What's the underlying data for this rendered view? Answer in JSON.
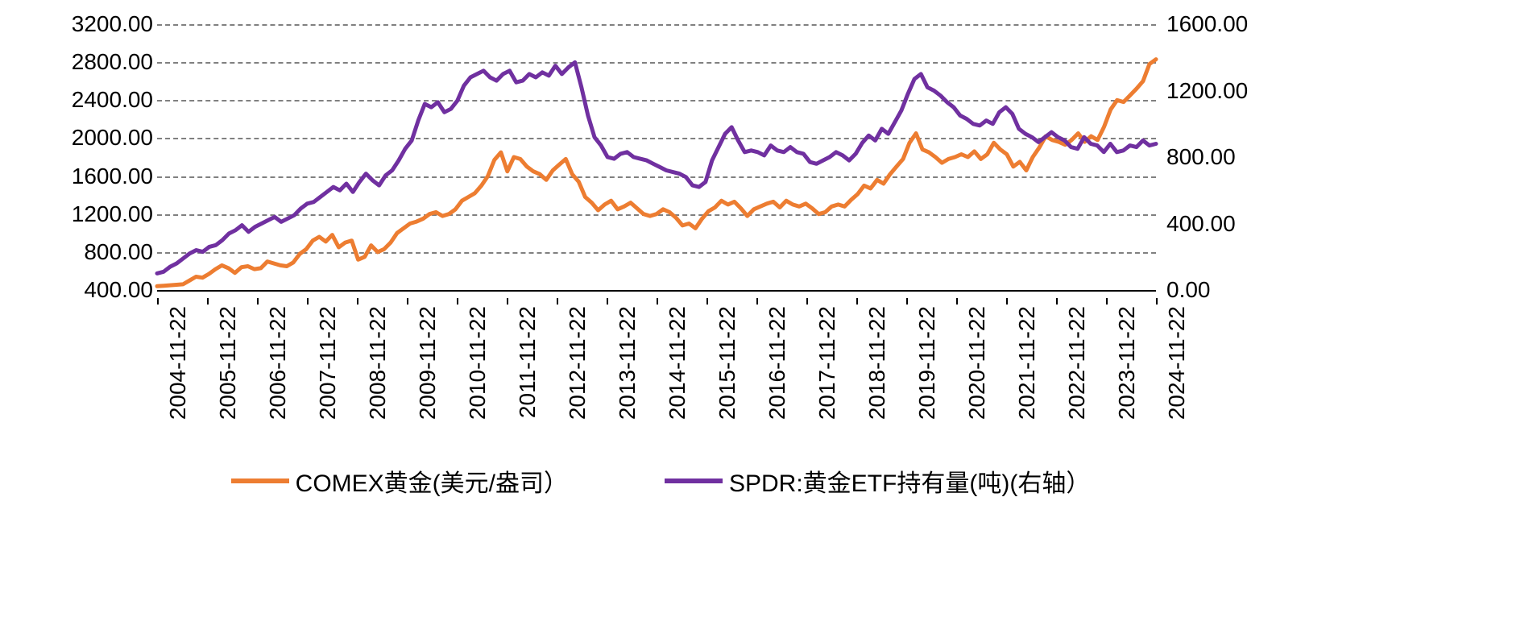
{
  "chart": {
    "type": "line-dual-axis",
    "background_color": "#ffffff",
    "grid_color": "#808080",
    "grid_dash": "6,6",
    "axis_color": "#000000",
    "tick_font_size": 28,
    "legend_font_size": 30,
    "line_width": 5,
    "left_axis": {
      "min": 400,
      "max": 3200,
      "ticks": [
        400,
        800,
        1200,
        1600,
        2000,
        2400,
        2800,
        3200
      ],
      "tick_labels": [
        "400.00",
        "800.00",
        "1200.00",
        "1600.00",
        "2000.00",
        "2400.00",
        "2800.00",
        "3200.00"
      ]
    },
    "right_axis": {
      "min": 0,
      "max": 1600,
      "ticks": [
        0,
        400,
        800,
        1200,
        1600
      ],
      "tick_labels": [
        "0.00",
        "400.00",
        "800.00",
        "1200.00",
        "1600.00"
      ]
    },
    "x_axis": {
      "labels": [
        "2004-11-22",
        "2005-11-22",
        "2006-11-22",
        "2007-11-22",
        "2008-11-22",
        "2009-11-22",
        "2010-11-22",
        "2011-11-22",
        "2012-11-22",
        "2013-11-22",
        "2014-11-22",
        "2015-11-22",
        "2016-11-22",
        "2017-11-22",
        "2018-11-22",
        "2019-11-22",
        "2020-11-22",
        "2021-11-22",
        "2022-11-22",
        "2023-11-22",
        "2024-11-22"
      ]
    },
    "series": [
      {
        "id": "comex",
        "label": "COMEX黄金(美元/盎司）",
        "axis": "left",
        "color": "#ed7d31",
        "values": [
          440,
          445,
          450,
          455,
          460,
          500,
          540,
          530,
          570,
          620,
          660,
          630,
          580,
          640,
          650,
          620,
          630,
          700,
          680,
          660,
          650,
          690,
          780,
          830,
          920,
          960,
          910,
          980,
          850,
          900,
          920,
          720,
          750,
          870,
          800,
          830,
          900,
          1000,
          1050,
          1100,
          1120,
          1150,
          1200,
          1220,
          1180,
          1200,
          1250,
          1340,
          1380,
          1420,
          1500,
          1600,
          1770,
          1850,
          1650,
          1800,
          1780,
          1700,
          1650,
          1620,
          1560,
          1660,
          1720,
          1780,
          1620,
          1540,
          1380,
          1320,
          1240,
          1300,
          1340,
          1250,
          1280,
          1320,
          1260,
          1200,
          1180,
          1200,
          1250,
          1220,
          1160,
          1080,
          1100,
          1050,
          1150,
          1230,
          1270,
          1340,
          1300,
          1330,
          1260,
          1180,
          1250,
          1280,
          1310,
          1330,
          1270,
          1340,
          1300,
          1280,
          1310,
          1260,
          1200,
          1220,
          1280,
          1300,
          1280,
          1350,
          1410,
          1500,
          1470,
          1560,
          1520,
          1620,
          1700,
          1780,
          1950,
          2050,
          1880,
          1850,
          1800,
          1740,
          1780,
          1800,
          1830,
          1800,
          1860,
          1780,
          1830,
          1950,
          1880,
          1830,
          1700,
          1750,
          1660,
          1800,
          1900,
          2020,
          1980,
          1960,
          1930,
          1980,
          2050,
          1960,
          2020,
          1980,
          2120,
          2300,
          2400,
          2380,
          2450,
          2520,
          2600,
          2780,
          2830
        ]
      },
      {
        "id": "spdr",
        "label": "SPDR:黄金ETF持有量(吨)(右轴）",
        "axis": "right",
        "color": "#7030a0",
        "values": [
          100,
          110,
          140,
          160,
          190,
          220,
          240,
          230,
          260,
          270,
          300,
          340,
          360,
          390,
          350,
          380,
          400,
          420,
          440,
          410,
          430,
          450,
          490,
          520,
          530,
          560,
          590,
          620,
          600,
          640,
          590,
          650,
          700,
          660,
          630,
          690,
          720,
          780,
          850,
          900,
          1020,
          1120,
          1100,
          1130,
          1070,
          1090,
          1140,
          1230,
          1280,
          1300,
          1320,
          1280,
          1260,
          1300,
          1320,
          1250,
          1260,
          1300,
          1280,
          1310,
          1290,
          1350,
          1300,
          1340,
          1370,
          1220,
          1050,
          920,
          870,
          800,
          790,
          820,
          830,
          800,
          790,
          780,
          760,
          740,
          720,
          710,
          700,
          680,
          630,
          620,
          650,
          780,
          860,
          940,
          980,
          900,
          830,
          840,
          830,
          810,
          870,
          840,
          830,
          860,
          830,
          820,
          770,
          760,
          780,
          800,
          830,
          810,
          780,
          820,
          885,
          930,
          900,
          970,
          940,
          1010,
          1080,
          1180,
          1270,
          1300,
          1220,
          1200,
          1170,
          1130,
          1100,
          1050,
          1030,
          1000,
          990,
          1020,
          1000,
          1070,
          1100,
          1060,
          970,
          940,
          920,
          890,
          920,
          950,
          920,
          900,
          860,
          850,
          920,
          880,
          870,
          830,
          880,
          830,
          840,
          870,
          860,
          900,
          870,
          880
        ]
      }
    ],
    "legend": [
      {
        "label": "COMEX黄金(美元/盎司）",
        "color": "#ed7d31"
      },
      {
        "label": "SPDR:黄金ETF持有量(吨)(右轴）",
        "color": "#7030a0"
      }
    ]
  }
}
